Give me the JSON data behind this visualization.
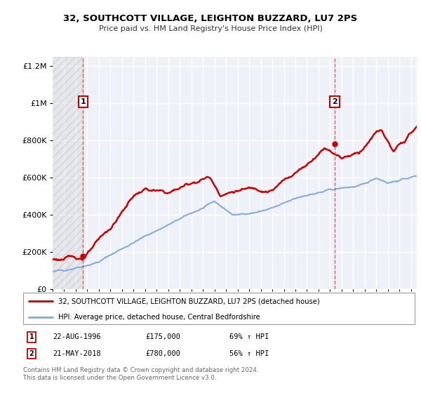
{
  "title": "32, SOUTHCOTT VILLAGE, LEIGHTON BUZZARD, LU7 2PS",
  "subtitle": "Price paid vs. HM Land Registry's House Price Index (HPI)",
  "hpi_label": "HPI: Average price, detached house, Central Bedfordshire",
  "property_label": "32, SOUTHCOTT VILLAGE, LEIGHTON BUZZARD, LU7 2PS (detached house)",
  "footer": "Contains HM Land Registry data © Crown copyright and database right 2024.\nThis data is licensed under the Open Government Licence v3.0.",
  "sale1_x": 1996.64,
  "sale1_y": 175000,
  "sale2_x": 2018.38,
  "sale2_y": 780000,
  "property_color": "#cc0000",
  "hpi_color": "#88aadd",
  "dashed_line_color": "#dd4444",
  "ylim": [
    0,
    1250000
  ],
  "xlim_start": 1994.0,
  "xlim_end": 2025.5,
  "background_color": "#ffffff",
  "plot_bg_color": "#eef2f8",
  "grid_color": "#ffffff",
  "yticks": [
    0,
    200000,
    400000,
    600000,
    800000,
    1000000,
    1200000
  ],
  "xticks_start": 1994,
  "xticks_end": 2026
}
